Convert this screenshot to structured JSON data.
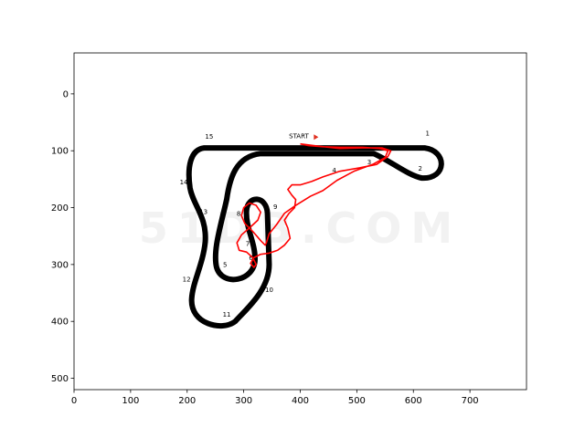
{
  "chart_data": {
    "type": "line",
    "title": "",
    "xlabel": "",
    "ylabel": "",
    "xlim": [
      0,
      800
    ],
    "ylim": [
      520,
      -72
    ],
    "y_inverted": true,
    "grid": false,
    "xticks": [
      0,
      100,
      200,
      300,
      400,
      500,
      600,
      700
    ],
    "yticks": [
      0,
      100,
      200,
      300,
      400,
      500
    ],
    "background_image": {
      "description_free": true,
      "track_color": "#000000",
      "start_label": "START",
      "corner_labels": [
        {
          "label": "1",
          "x": 625,
          "y": 73
        },
        {
          "label": "2",
          "x": 612,
          "y": 135
        },
        {
          "label": "3",
          "x": 522,
          "y": 124
        },
        {
          "label": "4",
          "x": 460,
          "y": 138
        },
        {
          "label": "5",
          "x": 267,
          "y": 304
        },
        {
          "label": "6",
          "x": 313,
          "y": 292
        },
        {
          "label": "7",
          "x": 307,
          "y": 267
        },
        {
          "label": "8",
          "x": 291,
          "y": 214
        },
        {
          "label": "9",
          "x": 356,
          "y": 202
        },
        {
          "label": "10",
          "x": 345,
          "y": 348
        },
        {
          "label": "11",
          "x": 270,
          "y": 392
        },
        {
          "label": "12",
          "x": 199,
          "y": 330
        },
        {
          "label": "13",
          "x": 229,
          "y": 211
        },
        {
          "label": "14",
          "x": 194,
          "y": 159
        },
        {
          "label": "15",
          "x": 239,
          "y": 79
        }
      ],
      "watermark": "51DB.COM"
    },
    "series": [
      {
        "color": "#ff0000",
        "x": [
          400,
          432,
          470,
          510,
          545,
          560,
          555,
          535,
          505,
          470,
          440,
          420,
          400,
          385,
          378,
          385,
          392,
          390,
          380,
          372,
          378,
          382,
          372,
          360,
          345,
          330,
          318,
          312,
          318,
          322,
          316,
          305,
          292,
          288,
          296,
          312,
          325,
          330,
          322,
          310,
          300,
          296,
          302,
          318,
          330,
          338,
          340,
          345,
          358,
          372,
          392,
          418,
          440,
          465,
          495,
          528,
          550,
          555,
          540,
          510,
          470,
          440,
          415,
          400
        ],
        "y": [
          88,
          92,
          96,
          95,
          95,
          100,
          110,
          124,
          130,
          136,
          146,
          154,
          160,
          160,
          168,
          178,
          186,
          200,
          210,
          222,
          236,
          254,
          266,
          275,
          280,
          282,
          288,
          298,
          305,
          300,
          288,
          278,
          275,
          262,
          248,
          234,
          222,
          208,
          196,
          192,
          200,
          214,
          228,
          244,
          258,
          266,
          262,
          246,
          230,
          210,
          196,
          180,
          170,
          152,
          136,
          124,
          112,
          100,
          96,
          94,
          94,
          93,
          91,
          88
        ]
      }
    ]
  }
}
